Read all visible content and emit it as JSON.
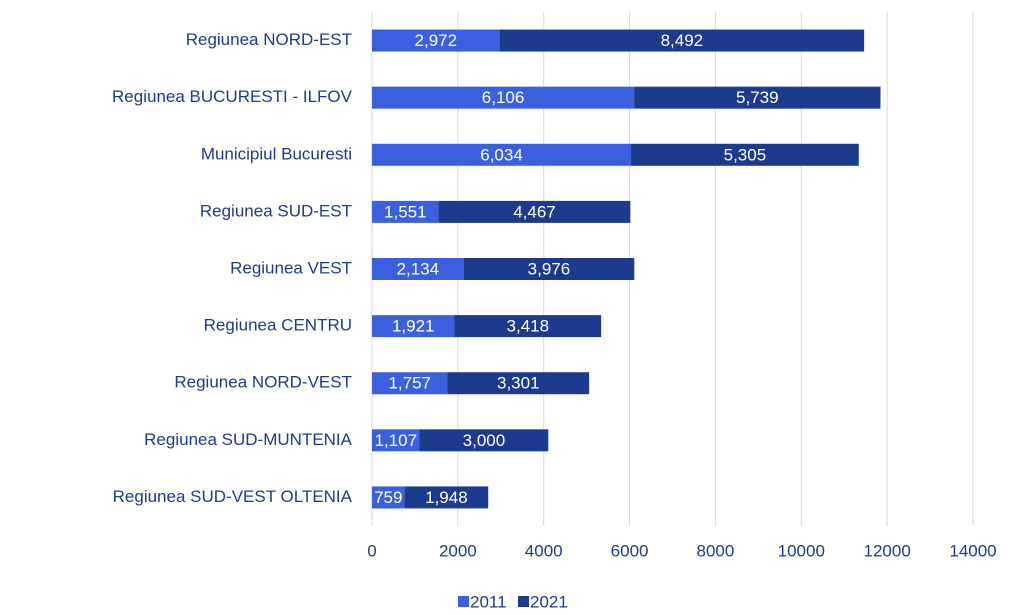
{
  "chart_data": {
    "type": "stacked-barh",
    "categories": [
      "Regiunea NORD-EST",
      "Regiunea BUCURESTI - ILFOV",
      "Municipiul Bucuresti",
      "Regiunea SUD-EST",
      "Regiunea VEST",
      "Regiunea CENTRU",
      "Regiunea NORD-VEST",
      "Regiunea SUD-MUNTENIA",
      "Regiunea SUD-VEST OLTENIA"
    ],
    "series": [
      {
        "name": "2011",
        "color": "#3b60df",
        "values": [
          2972,
          6106,
          6034,
          1551,
          2134,
          1921,
          1757,
          1107,
          759
        ],
        "value_labels": [
          "2,972",
          "6,106",
          "6,034",
          "1,551",
          "2,134",
          "1,921",
          "1,757",
          "1,107",
          "759"
        ]
      },
      {
        "name": "2021",
        "color": "#1c3a8e",
        "values": [
          8492,
          5739,
          5305,
          4467,
          3976,
          3418,
          3301,
          3000,
          1948
        ],
        "value_labels": [
          "8,492",
          "5,739",
          "5,305",
          "4,467",
          "3,976",
          "3,418",
          "3,301",
          "3,000",
          "1,948"
        ]
      }
    ],
    "xlim": [
      0,
      14000
    ],
    "xticks": [
      0,
      2000,
      4000,
      6000,
      8000,
      10000,
      12000,
      14000
    ],
    "grid": true,
    "legend": "bottom"
  }
}
